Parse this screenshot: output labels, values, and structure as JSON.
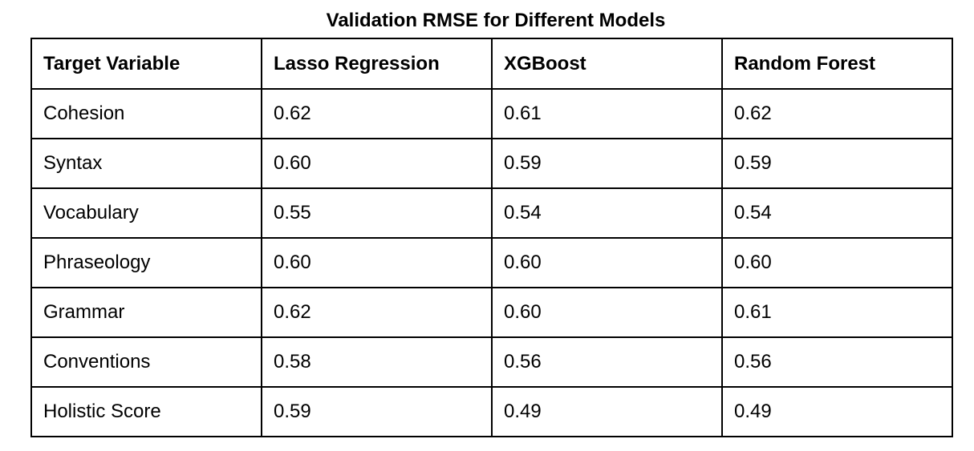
{
  "title": "Validation RMSE for Different Models",
  "chart_data": {
    "type": "table",
    "title": "Validation RMSE for Different Models",
    "columns": [
      "Target Variable",
      "Lasso Regression",
      "XGBoost",
      "Random Forest"
    ],
    "rows": [
      [
        "Cohesion",
        "0.62",
        "0.61",
        "0.62"
      ],
      [
        "Syntax",
        "0.60",
        "0.59",
        "0.59"
      ],
      [
        "Vocabulary",
        "0.55",
        "0.54",
        "0.54"
      ],
      [
        "Phraseology",
        "0.60",
        "0.60",
        "0.60"
      ],
      [
        "Grammar",
        "0.62",
        "0.60",
        "0.61"
      ],
      [
        "Conventions",
        "0.58",
        "0.56",
        "0.56"
      ],
      [
        "Holistic Score",
        "0.59",
        "0.49",
        "0.49"
      ]
    ]
  }
}
